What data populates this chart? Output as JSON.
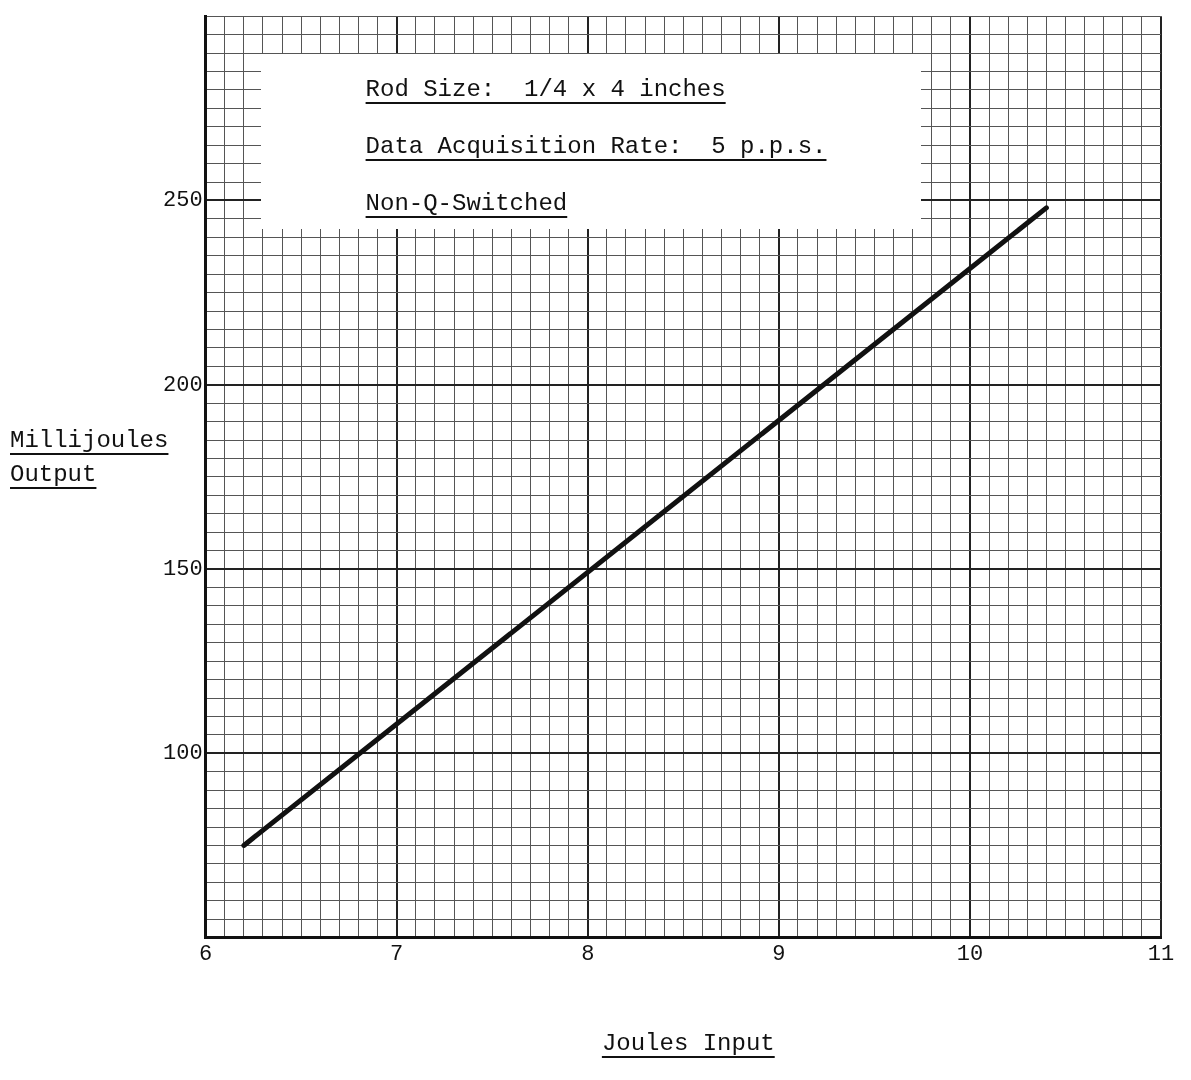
{
  "chart_data": {
    "type": "line",
    "xlabel": "Joules Input",
    "ylabel": "Millijoules Output",
    "annotations": [
      "Rod Size:  1/4 x 4 inches",
      "Data Acquisition Rate:  5 p.p.s.",
      "Non-Q-Switched"
    ],
    "series": [
      {
        "color": "#111111",
        "x": [
          6.2,
          10.4
        ],
        "values": [
          75,
          248
        ]
      }
    ],
    "xlim": [
      6,
      11
    ],
    "ylim": [
      50,
      300
    ],
    "xticks": [
      6,
      {
        "value": 6.1,
        "label": null
      },
      {
        "value": 6.2,
        "label": null
      },
      {
        "value": 6.3,
        "label": null
      },
      {
        "value": 6.4,
        "label": null
      },
      {
        "value": 6.5,
        "label": null
      },
      {
        "value": 6.6,
        "label": null
      },
      {
        "value": 6.7,
        "label": null
      },
      {
        "value": 6.8,
        "label": null
      },
      {
        "value": 6.9,
        "label": null
      },
      7,
      {
        "value": 7.1,
        "label": null
      },
      {
        "value": 7.2,
        "label": null
      },
      {
        "value": 7.3,
        "label": null
      },
      {
        "value": 7.4,
        "label": null
      },
      {
        "value": 7.5,
        "label": null
      },
      {
        "value": 7.6,
        "label": null
      },
      {
        "value": 7.7,
        "label": null
      },
      {
        "value": 7.8,
        "label": null
      },
      {
        "value": 7.9,
        "label": null
      },
      8,
      {
        "value": 8.1,
        "label": null
      },
      {
        "value": 8.2,
        "label": null
      },
      {
        "value": 8.3,
        "label": null
      },
      {
        "value": 8.4,
        "label": null
      },
      {
        "value": 8.5,
        "label": null
      },
      {
        "value": 8.6,
        "label": null
      },
      {
        "value": 8.7,
        "label": null
      },
      {
        "value": 8.8,
        "label": null
      },
      {
        "value": 8.9,
        "label": null
      },
      9,
      {
        "value": 9.1,
        "label": null
      },
      {
        "value": 9.2,
        "label": null
      },
      {
        "value": 9.3,
        "label": null
      },
      {
        "value": 9.4,
        "label": null
      },
      {
        "value": 9.5,
        "label": null
      },
      {
        "value": 9.6,
        "label": null
      },
      {
        "value": 9.7,
        "label": null
      },
      {
        "value": 9.8,
        "label": null
      },
      {
        "value": 9.9,
        "label": null
      },
      10,
      {
        "value": 10.1,
        "label": null
      },
      {
        "value": 10.2,
        "label": null
      },
      {
        "value": 10.3,
        "label": null
      },
      {
        "value": 10.4,
        "label": null
      },
      {
        "value": 10.5,
        "label": null
      },
      {
        "value": 10.6,
        "label": null
      },
      {
        "value": 10.7,
        "label": null
      },
      {
        "value": 10.8,
        "label": null
      },
      {
        "value": 10.9,
        "label": null
      },
      11
    ],
    "yticks": [
      {
        "value": 50,
        "label": null
      },
      {
        "value": 55,
        "label": null
      },
      {
        "value": 60,
        "label": null
      },
      {
        "value": 65,
        "label": null
      },
      {
        "value": 70,
        "label": null
      },
      {
        "value": 75,
        "label": null
      },
      {
        "value": 80,
        "label": null
      },
      {
        "value": 85,
        "label": null
      },
      {
        "value": 90,
        "label": null
      },
      {
        "value": 95,
        "label": null
      },
      100,
      {
        "value": 105,
        "label": null
      },
      {
        "value": 110,
        "label": null
      },
      {
        "value": 115,
        "label": null
      },
      {
        "value": 120,
        "label": null
      },
      {
        "value": 125,
        "label": null
      },
      {
        "value": 130,
        "label": null
      },
      {
        "value": 135,
        "label": null
      },
      {
        "value": 140,
        "label": null
      },
      {
        "value": 145,
        "label": null
      },
      150,
      {
        "value": 155,
        "label": null
      },
      {
        "value": 160,
        "label": null
      },
      {
        "value": 165,
        "label": null
      },
      {
        "value": 170,
        "label": null
      },
      {
        "value": 175,
        "label": null
      },
      {
        "value": 180,
        "label": null
      },
      {
        "value": 185,
        "label": null
      },
      {
        "value": 190,
        "label": null
      },
      {
        "value": 195,
        "label": null
      },
      200,
      {
        "value": 205,
        "label": null
      },
      {
        "value": 210,
        "label": null
      },
      {
        "value": 215,
        "label": null
      },
      {
        "value": 220,
        "label": null
      },
      {
        "value": 225,
        "label": null
      },
      {
        "value": 230,
        "label": null
      },
      {
        "value": 235,
        "label": null
      },
      {
        "value": 240,
        "label": null
      },
      {
        "value": 245,
        "label": null
      },
      250,
      {
        "value": 255,
        "label": null
      },
      {
        "value": 260,
        "label": null
      },
      {
        "value": 265,
        "label": null
      },
      {
        "value": 270,
        "label": null
      },
      {
        "value": 275,
        "label": null
      },
      {
        "value": 280,
        "label": null
      },
      {
        "value": 285,
        "label": null
      },
      {
        "value": 290,
        "label": null
      },
      {
        "value": 295,
        "label": null
      },
      {
        "value": 300,
        "label": null
      }
    ],
    "grid": true,
    "legend": false,
    "marker": "none",
    "line_style": "solid"
  }
}
